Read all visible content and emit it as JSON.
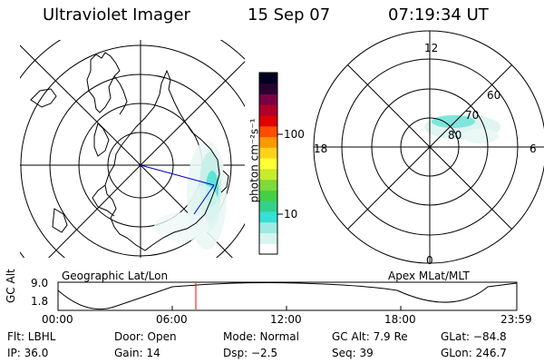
{
  "header": {
    "instrument": "Ultraviolet Imager",
    "date": "15 Sep 07",
    "time": "07:19:34 UT"
  },
  "colorbar": {
    "unit_label": "photon cm⁻²s⁻¹",
    "tick_100": "100",
    "tick_10": "10",
    "colors": [
      "#ffffff",
      "#d6f5ee",
      "#9ee9e4",
      "#35e0d6",
      "#33d18c",
      "#44d044",
      "#7fd93a",
      "#c6ec2c",
      "#ffff33",
      "#ffd21a",
      "#ff9900",
      "#ff4d00",
      "#e00000",
      "#b0002a",
      "#7a0044",
      "#2a0033",
      "#000020"
    ]
  },
  "left_map": {
    "label": "Geographic Lat/Lon"
  },
  "right_map": {
    "label": "Apex MLat/MLT",
    "mlt_12": "12",
    "mlt_18": "18",
    "mlt_6": "6",
    "mlt_0": "0",
    "lat_60": "60",
    "lat_70": "70",
    "lat_80": "80"
  },
  "timeline": {
    "axis_label": "GC Alt",
    "y_top": "9.0",
    "y_bottom": "1.8",
    "ticks": [
      "00:00",
      "06:00",
      "12:00",
      "18:00",
      "23:59"
    ],
    "marker_color": "#ff0000"
  },
  "footer": {
    "filt": "Flt: LBHL",
    "door": "Door: Open",
    "mode": "Mode: Normal",
    "gcalt": "GC Alt: 7.9 Re",
    "glat": "GLat: −84.8",
    "ip": "IP: 36.0",
    "gain": "Gain: 14",
    "dsp": "Dsp:    −2.5",
    "seq": "Seq: 39",
    "glon": "GLon: 246.7"
  }
}
